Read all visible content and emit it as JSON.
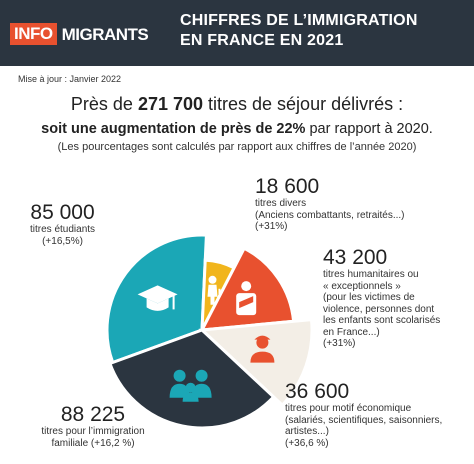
{
  "header": {
    "logo_left": "INFO",
    "logo_right": "MIGRANTS",
    "title_line1": "CHIFFRES DE L’IMMIGRATION",
    "title_line2": "EN FRANCE EN 2021"
  },
  "update": "Mise à jour : Janvier 2022",
  "headline": {
    "prefix": "Près de ",
    "number": "271 700",
    "suffix": " titres de séjour délivrés :"
  },
  "subline": {
    "bold": "soit une augmentation de près de 22%",
    "rest": " par rapport à 2020."
  },
  "note": "(Les pourcentages sont calculés par rapport aux chiffres de l’année 2020)",
  "labels": {
    "etudiants": {
      "value": "85 000",
      "line1": "titres étudiants",
      "line2": "(+16,5%)"
    },
    "divers": {
      "value": "18 600",
      "line1": "titres divers",
      "line2": "(Anciens combattants, retraités...)",
      "line3": "(+31%)"
    },
    "humanitaires": {
      "value": "43 200",
      "lines": [
        "titres humanitaires ou",
        "« exceptionnels »",
        "(pour les victimes de",
        "violence, personnes dont",
        "les enfants sont scolarisés",
        "en France...)",
        "(+31%)"
      ]
    },
    "economique": {
      "value": "36 600",
      "lines": [
        "titres pour motif économique",
        "(salariés, scientifiques, saisonniers,",
        "artistes...)",
        "(+36,6 %)"
      ]
    },
    "familiale": {
      "value": "88 225",
      "line1": "titres pour l’immigration",
      "line2": "familiale (+16,2 %)"
    }
  },
  "chart_data": {
    "type": "pie",
    "total": 271700,
    "series": [
      {
        "name": "titres étudiants",
        "value": 85000,
        "change": "+16,5%",
        "color": "#1ba7b6",
        "icon": "graduation-cap-icon"
      },
      {
        "name": "titres divers",
        "value": 18600,
        "change": "+31%",
        "color": "#f1b51c",
        "icon": "elderly-person-icon"
      },
      {
        "name": "titres humanitaires ou « exceptionnels »",
        "value": 43200,
        "change": "+31%",
        "color": "#e8512f",
        "icon": "injured-person-icon"
      },
      {
        "name": "titres pour motif économique",
        "value": 36600,
        "change": "+36,6 %",
        "color": "#f3eee6",
        "icon": "worker-icon"
      },
      {
        "name": "titres pour l’immigration familiale",
        "value": 88225,
        "change": "+16,2 %",
        "color": "#2b3540",
        "icon": "family-icon"
      }
    ]
  }
}
